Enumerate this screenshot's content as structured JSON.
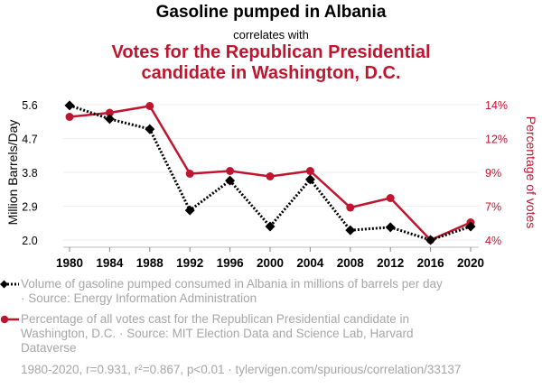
{
  "header": {
    "title": "Gasoline pumped in Albania",
    "connector": "correlates with",
    "subtitle_line1": "Votes for the Republican Presidential",
    "subtitle_line2": "candidate in Washington, D.C."
  },
  "legend": {
    "series1_line1": "Volume of gasoline pumped consumed in Albania in millions of barrels per day",
    "series1_line2": "· Source: Energy Information Administration",
    "series2_line1": "Percentage of all votes cast for the Republican Presidential candidate in",
    "series2_line2": "Washington, D.C. · Source: MIT Election Data and Science Lab, Harvard",
    "series2_line3": "Dataverse"
  },
  "footer": "1980-2020, r=0.931, r²=0.867, p<0.01 · tylervigen.com/spurious/correlation/33137",
  "colors": {
    "series1": "#000000",
    "series2": "#c0152f",
    "grid": "#eeeeee",
    "muted_text": "#a6a6a6"
  },
  "chart_data": {
    "type": "line",
    "title": "Gasoline pumped in Albania correlates with Votes for the Republican Presidential candidate in Washington, D.C.",
    "x": [
      1980,
      1984,
      1988,
      1992,
      1996,
      2000,
      2004,
      2008,
      2012,
      2016,
      2020
    ],
    "xlabel": "",
    "x_ticks": [
      "1980",
      "1984",
      "1988",
      "1992",
      "1996",
      "2000",
      "2004",
      "2008",
      "2012",
      "2016",
      "2020"
    ],
    "y_left": {
      "label": "Million Barrels/Day",
      "range": [
        2.0,
        5.6
      ],
      "ticks": [
        2.0,
        2.9,
        3.8,
        4.7,
        5.6
      ],
      "tick_labels": [
        "2.0",
        "2.9",
        "3.8",
        "4.7",
        "5.6"
      ]
    },
    "y_right": {
      "label": "Percentage of votes",
      "range": [
        4.0,
        14.0
      ],
      "ticks": [
        4.0,
        6.5,
        9.0,
        11.5,
        14.0
      ],
      "tick_labels": [
        "4%",
        "7%",
        "9%",
        "12%",
        "14%"
      ]
    },
    "grid": true,
    "series": [
      {
        "name": "Volume of gasoline pumped consumed in Albania in millions of barrels per day",
        "axis": "left",
        "style": "dotted",
        "marker": "diamond",
        "values": [
          5.58,
          5.22,
          4.95,
          2.79,
          3.58,
          2.36,
          3.61,
          2.26,
          2.34,
          2.0,
          2.36
        ]
      },
      {
        "name": "Percentage of all votes cast for the Republican Presidential candidate in Washington, D.C.",
        "axis": "right",
        "style": "solid",
        "marker": "circle",
        "values": [
          13.1,
          13.4,
          13.9,
          8.9,
          9.1,
          8.7,
          9.1,
          6.4,
          7.1,
          4.0,
          5.3
        ]
      }
    ]
  }
}
